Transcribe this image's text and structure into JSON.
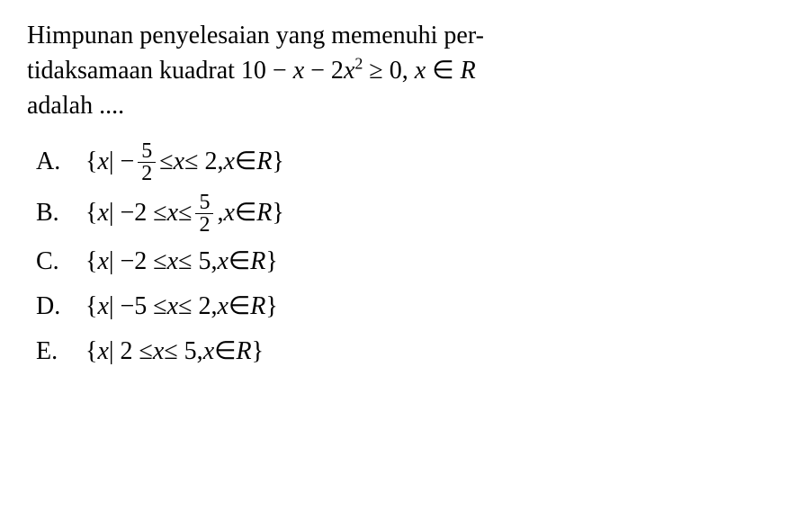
{
  "question": {
    "line1_part1": "Himpunan penyelesaian yang memenuhi per-",
    "line2_part1": "tidaksamaan kuadrat 10 − ",
    "line2_var1": "x",
    "line2_part2": " − 2",
    "line2_var2": "x",
    "line2_sup": "2",
    "line2_part3": " ≥ 0, ",
    "line2_var3": "x",
    "line2_part4": " ∈ ",
    "line2_set": "R",
    "line3": "adalah ...."
  },
  "options": {
    "a": {
      "label": "A.",
      "open": "{",
      "var_x": "x",
      "bar": " | −",
      "frac_num": "5",
      "frac_den": "2",
      "mid": " ≤ ",
      "var_x2": "x",
      "mid2": " ≤ 2, ",
      "var_x3": "x",
      "in": " ∈ ",
      "set": "R",
      "close": "}"
    },
    "b": {
      "label": "B.",
      "open": "{",
      "var_x": "x",
      "bar": " | −2 ≤ ",
      "var_x2": "x",
      "mid": " ≤ ",
      "frac_num": "5",
      "frac_den": "2",
      "mid2": ", ",
      "var_x3": "x",
      "in": " ∈ ",
      "set": "R",
      "close": "}"
    },
    "c": {
      "label": "C.",
      "open": "{",
      "var_x": "x",
      "content": " | −2 ≤ ",
      "var_x2": "x",
      "content2": " ≤ 5, ",
      "var_x3": "x",
      "in": " ∈ ",
      "set": "R",
      "close": "}"
    },
    "d": {
      "label": "D.",
      "open": "{",
      "var_x": "x",
      "content": " | −5 ≤ ",
      "var_x2": "x",
      "content2": " ≤ 2, ",
      "var_x3": "x",
      "in": " ∈ ",
      "set": "R",
      "close": "}"
    },
    "e": {
      "label": "E.",
      "open": "{",
      "var_x": "x",
      "content": " | 2 ≤ ",
      "var_x2": "x",
      "content2": " ≤ 5, ",
      "var_x3": "x",
      "in": " ∈ ",
      "set": "R",
      "close": "}"
    }
  },
  "styling": {
    "font_family": "Georgia, Times New Roman, serif",
    "text_color": "#000000",
    "background_color": "#ffffff",
    "question_fontsize": 28,
    "option_fontsize": 28,
    "fraction_fontsize": 24,
    "superscript_fontsize": 18
  }
}
